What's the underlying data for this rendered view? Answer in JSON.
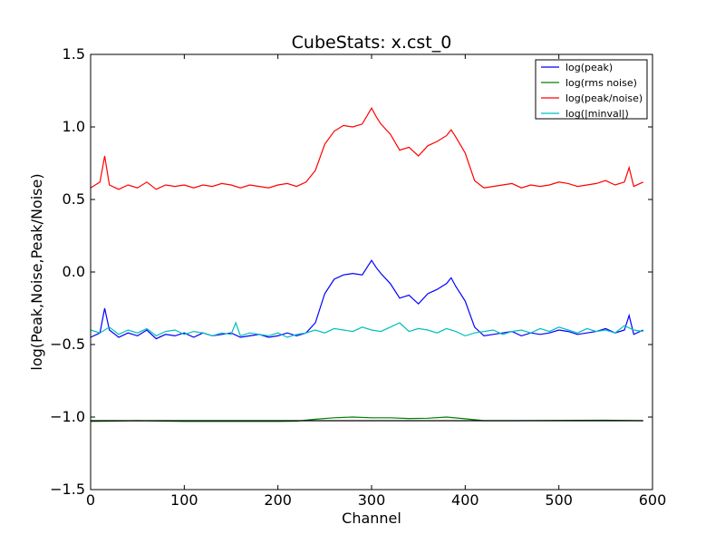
{
  "chart_data": {
    "type": "line",
    "title": "CubeStats: x.cst_0",
    "xlabel": "Channel",
    "ylabel": "log(Peak,Noise,Peak/Noise)",
    "xlim": [
      0,
      600
    ],
    "ylim": [
      -1.5,
      1.5
    ],
    "xticks": [
      0,
      100,
      200,
      300,
      400,
      500,
      600
    ],
    "xtick_labels": [
      "0",
      "100",
      "200",
      "300",
      "400",
      "500",
      "600"
    ],
    "yticks": [
      -1.5,
      -1.0,
      -0.5,
      0.0,
      0.5,
      1.0,
      1.5
    ],
    "ytick_labels": [
      "−1.5",
      "−1.0",
      "−0.5",
      "0.0",
      "0.5",
      "1.0",
      "1.5"
    ],
    "grid": false,
    "legend_position": "top-right",
    "hline": {
      "y": -1.025,
      "color": "#000000"
    },
    "series": [
      {
        "name": "log(peak)",
        "color": "#0000ff",
        "x": [
          0,
          10,
          15,
          20,
          30,
          40,
          50,
          60,
          70,
          80,
          90,
          100,
          110,
          120,
          130,
          140,
          150,
          160,
          170,
          180,
          190,
          200,
          210,
          220,
          230,
          240,
          250,
          260,
          270,
          280,
          290,
          300,
          305,
          310,
          320,
          330,
          340,
          350,
          360,
          370,
          380,
          385,
          390,
          400,
          410,
          420,
          430,
          440,
          450,
          460,
          470,
          480,
          490,
          500,
          510,
          520,
          530,
          540,
          550,
          560,
          570,
          575,
          580,
          590
        ],
        "y": [
          -0.45,
          -0.42,
          -0.25,
          -0.4,
          -0.45,
          -0.42,
          -0.44,
          -0.4,
          -0.46,
          -0.43,
          -0.44,
          -0.42,
          -0.45,
          -0.42,
          -0.44,
          -0.43,
          -0.42,
          -0.45,
          -0.44,
          -0.43,
          -0.45,
          -0.44,
          -0.42,
          -0.44,
          -0.42,
          -0.35,
          -0.15,
          -0.05,
          -0.02,
          -0.01,
          -0.02,
          0.08,
          0.03,
          -0.01,
          -0.08,
          -0.18,
          -0.16,
          -0.22,
          -0.15,
          -0.12,
          -0.08,
          -0.04,
          -0.1,
          -0.2,
          -0.38,
          -0.44,
          -0.43,
          -0.42,
          -0.41,
          -0.44,
          -0.42,
          -0.43,
          -0.42,
          -0.4,
          -0.41,
          -0.43,
          -0.42,
          -0.41,
          -0.39,
          -0.42,
          -0.4,
          -0.3,
          -0.43,
          -0.4
        ]
      },
      {
        "name": "log(rms noise)",
        "color": "#008000",
        "x": [
          0,
          50,
          100,
          150,
          200,
          220,
          240,
          260,
          280,
          300,
          320,
          340,
          360,
          380,
          400,
          420,
          450,
          500,
          550,
          590
        ],
        "y": [
          -1.03,
          -1.025,
          -1.03,
          -1.03,
          -1.03,
          -1.028,
          -1.015,
          -1.005,
          -1.0,
          -1.005,
          -1.005,
          -1.01,
          -1.008,
          -1.0,
          -1.012,
          -1.025,
          -1.025,
          -1.023,
          -1.022,
          -1.025
        ]
      },
      {
        "name": "log(peak/noise)",
        "color": "#ff0000",
        "x": [
          0,
          10,
          15,
          20,
          30,
          40,
          50,
          60,
          70,
          80,
          90,
          100,
          110,
          120,
          130,
          140,
          150,
          160,
          170,
          180,
          190,
          200,
          210,
          220,
          230,
          240,
          250,
          260,
          270,
          280,
          290,
          300,
          305,
          310,
          320,
          330,
          340,
          350,
          360,
          370,
          380,
          385,
          390,
          400,
          410,
          420,
          430,
          440,
          450,
          460,
          470,
          480,
          490,
          500,
          510,
          520,
          530,
          540,
          550,
          560,
          570,
          575,
          580,
          590
        ],
        "y": [
          0.58,
          0.62,
          0.8,
          0.6,
          0.57,
          0.6,
          0.58,
          0.62,
          0.57,
          0.6,
          0.59,
          0.6,
          0.58,
          0.6,
          0.59,
          0.61,
          0.6,
          0.58,
          0.6,
          0.59,
          0.58,
          0.6,
          0.61,
          0.59,
          0.62,
          0.7,
          0.88,
          0.97,
          1.01,
          1.0,
          1.02,
          1.13,
          1.07,
          1.02,
          0.95,
          0.84,
          0.86,
          0.8,
          0.87,
          0.9,
          0.94,
          0.98,
          0.93,
          0.82,
          0.63,
          0.58,
          0.59,
          0.6,
          0.61,
          0.58,
          0.6,
          0.59,
          0.6,
          0.62,
          0.61,
          0.59,
          0.6,
          0.61,
          0.63,
          0.6,
          0.62,
          0.72,
          0.59,
          0.62
        ]
      },
      {
        "name": "log(|minval|)",
        "color": "#00bfbf",
        "x": [
          0,
          10,
          20,
          30,
          40,
          50,
          60,
          70,
          80,
          90,
          100,
          110,
          120,
          130,
          140,
          150,
          155,
          160,
          170,
          180,
          190,
          200,
          210,
          220,
          230,
          240,
          250,
          260,
          270,
          280,
          290,
          300,
          310,
          320,
          330,
          340,
          350,
          360,
          370,
          380,
          390,
          400,
          410,
          420,
          430,
          440,
          450,
          460,
          470,
          480,
          490,
          500,
          510,
          520,
          530,
          540,
          550,
          560,
          570,
          580,
          590
        ],
        "y": [
          -0.4,
          -0.42,
          -0.38,
          -0.43,
          -0.4,
          -0.42,
          -0.39,
          -0.44,
          -0.41,
          -0.4,
          -0.43,
          -0.41,
          -0.42,
          -0.44,
          -0.42,
          -0.43,
          -0.35,
          -0.44,
          -0.42,
          -0.43,
          -0.44,
          -0.42,
          -0.45,
          -0.43,
          -0.42,
          -0.4,
          -0.42,
          -0.39,
          -0.4,
          -0.41,
          -0.38,
          -0.4,
          -0.41,
          -0.38,
          -0.35,
          -0.41,
          -0.39,
          -0.4,
          -0.42,
          -0.39,
          -0.41,
          -0.44,
          -0.42,
          -0.41,
          -0.4,
          -0.43,
          -0.41,
          -0.4,
          -0.42,
          -0.39,
          -0.41,
          -0.38,
          -0.4,
          -0.42,
          -0.39,
          -0.41,
          -0.4,
          -0.42,
          -0.37,
          -0.4,
          -0.41
        ]
      }
    ]
  }
}
